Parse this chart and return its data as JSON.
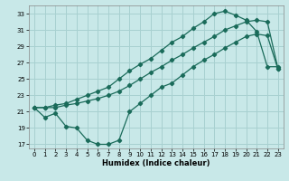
{
  "title": "",
  "xlabel": "Humidex (Indice chaleur)",
  "bg_color": "#c8e8e8",
  "grid_color": "#a8d0d0",
  "line_color": "#1a6b5a",
  "xlim": [
    -0.5,
    23.5
  ],
  "ylim": [
    16.5,
    34.0
  ],
  "xticks": [
    0,
    1,
    2,
    3,
    4,
    5,
    6,
    7,
    8,
    9,
    10,
    11,
    12,
    13,
    14,
    15,
    16,
    17,
    18,
    19,
    20,
    21,
    22,
    23
  ],
  "yticks": [
    17,
    19,
    21,
    23,
    25,
    27,
    29,
    31,
    33
  ],
  "line1_x": [
    0,
    1,
    2,
    3,
    4,
    5,
    6,
    7,
    8,
    9,
    10,
    11,
    12,
    13,
    14,
    15,
    16,
    17,
    18,
    19,
    20,
    21,
    22,
    23
  ],
  "line1_y": [
    21.5,
    20.3,
    20.8,
    19.2,
    19.0,
    17.5,
    17.0,
    17.0,
    17.5,
    21.0,
    22.0,
    23.0,
    24.0,
    24.5,
    25.5,
    26.5,
    27.3,
    28.0,
    28.8,
    29.5,
    30.2,
    30.5,
    30.3,
    26.2
  ],
  "line2_x": [
    0,
    1,
    2,
    3,
    4,
    5,
    6,
    7,
    8,
    9,
    10,
    11,
    12,
    13,
    14,
    15,
    16,
    17,
    18,
    19,
    20,
    21,
    22,
    23
  ],
  "line2_y": [
    21.5,
    21.5,
    21.5,
    21.8,
    22.0,
    22.3,
    22.6,
    23.0,
    23.5,
    24.2,
    25.0,
    25.8,
    26.5,
    27.3,
    28.0,
    28.8,
    29.5,
    30.2,
    31.0,
    31.5,
    32.0,
    32.2,
    32.0,
    26.3
  ],
  "line3_x": [
    0,
    1,
    2,
    3,
    4,
    5,
    6,
    7,
    8,
    9,
    10,
    11,
    12,
    13,
    14,
    15,
    16,
    17,
    18,
    19,
    20,
    21,
    22,
    23
  ],
  "line3_y": [
    21.5,
    21.5,
    21.8,
    22.0,
    22.5,
    23.0,
    23.5,
    24.0,
    25.0,
    26.0,
    26.8,
    27.5,
    28.5,
    29.5,
    30.2,
    31.2,
    32.0,
    33.0,
    33.3,
    32.8,
    32.2,
    30.8,
    26.5,
    26.5
  ]
}
